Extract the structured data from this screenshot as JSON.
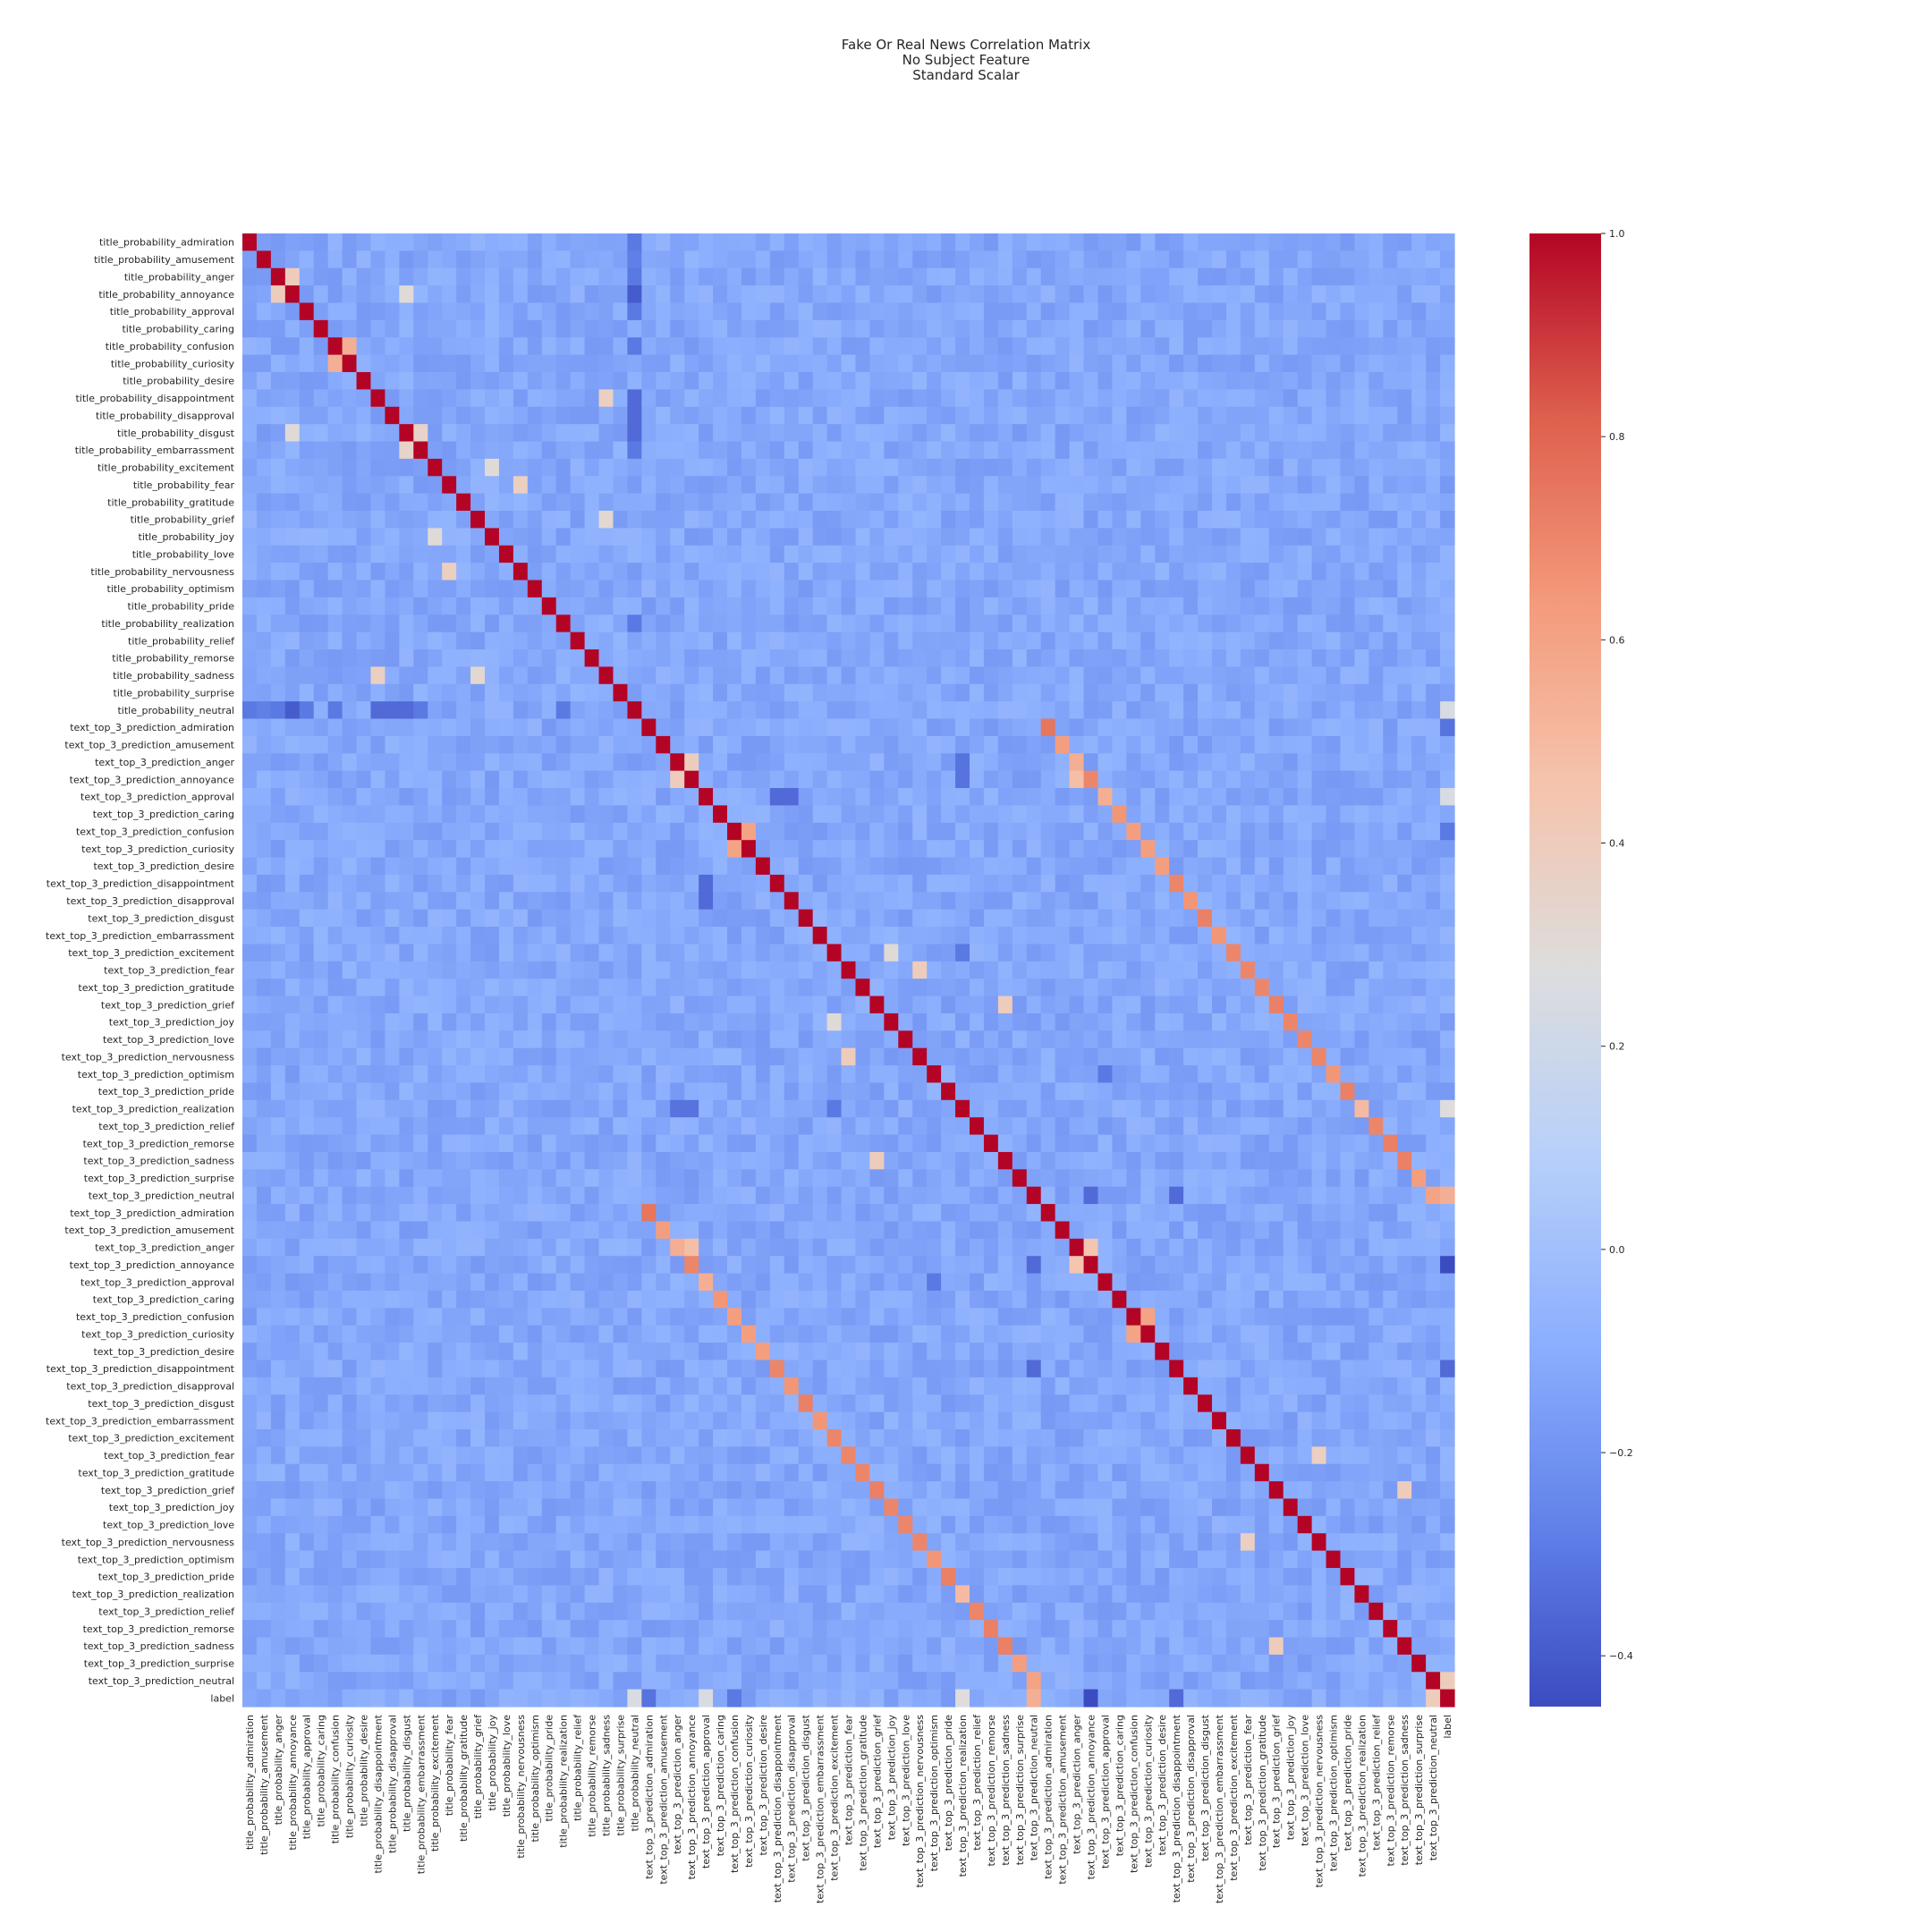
{
  "chart_data": {
    "type": "heatmap",
    "title_lines": [
      "Fake Or Real News Correlation Matrix",
      "No Subject Feature",
      "Standard Scalar"
    ],
    "labels": [
      "title_probability_admiration",
      "title_probability_amusement",
      "title_probability_anger",
      "title_probability_annoyance",
      "title_probability_approval",
      "title_probability_caring",
      "title_probability_confusion",
      "title_probability_curiosity",
      "title_probability_desire",
      "title_probability_disappointment",
      "title_probability_disapproval",
      "title_probability_disgust",
      "title_probability_embarrassment",
      "title_probability_excitement",
      "title_probability_fear",
      "title_probability_gratitude",
      "title_probability_grief",
      "title_probability_joy",
      "title_probability_love",
      "title_probability_nervousness",
      "title_probability_optimism",
      "title_probability_pride",
      "title_probability_realization",
      "title_probability_relief",
      "title_probability_remorse",
      "title_probability_sadness",
      "title_probability_surprise",
      "title_probability_neutral",
      "text_top_3_prediction_admiration",
      "text_top_3_prediction_amusement",
      "text_top_3_prediction_anger",
      "text_top_3_prediction_annoyance",
      "text_top_3_prediction_approval",
      "text_top_3_prediction_caring",
      "text_top_3_prediction_confusion",
      "text_top_3_prediction_curiosity",
      "text_top_3_prediction_desire",
      "text_top_3_prediction_disappointment",
      "text_top_3_prediction_disapproval",
      "text_top_3_prediction_disgust",
      "text_top_3_prediction_embarrassment",
      "text_top_3_prediction_excitement",
      "text_top_3_prediction_fear",
      "text_top_3_prediction_gratitude",
      "text_top_3_prediction_grief",
      "text_top_3_prediction_joy",
      "text_top_3_prediction_love",
      "text_top_3_prediction_nervousness",
      "text_top_3_prediction_optimism",
      "text_top_3_prediction_pride",
      "text_top_3_prediction_realization",
      "text_top_3_prediction_relief",
      "text_top_3_prediction_remorse",
      "text_top_3_prediction_sadness",
      "text_top_3_prediction_surprise",
      "text_top_3_prediction_neutral",
      "text_top_3_prediction_admiration",
      "text_top_3_prediction_amusement",
      "text_top_3_prediction_anger",
      "text_top_3_prediction_annoyance",
      "text_top_3_prediction_approval",
      "text_top_3_prediction_caring",
      "text_top_3_prediction_confusion",
      "text_top_3_prediction_curiosity",
      "text_top_3_prediction_desire",
      "text_top_3_prediction_disappointment",
      "text_top_3_prediction_disapproval",
      "text_top_3_prediction_disgust",
      "text_top_3_prediction_embarrassment",
      "text_top_3_prediction_excitement",
      "text_top_3_prediction_fear",
      "text_top_3_prediction_gratitude",
      "text_top_3_prediction_grief",
      "text_top_3_prediction_joy",
      "text_top_3_prediction_love",
      "text_top_3_prediction_nervousness",
      "text_top_3_prediction_optimism",
      "text_top_3_prediction_pride",
      "text_top_3_prediction_realization",
      "text_top_3_prediction_relief",
      "text_top_3_prediction_remorse",
      "text_top_3_prediction_sadness",
      "text_top_3_prediction_surprise",
      "text_top_3_prediction_neutral",
      "label"
    ],
    "vmin": -0.45,
    "vmax": 1.0,
    "colormap": "coolwarm",
    "colorbar_ticks": [
      1.0,
      0.8,
      0.6,
      0.4,
      0.2,
      0.0,
      -0.2,
      -0.4
    ],
    "colorbar_tick_labels": [
      "1.0",
      "0.8",
      "0.6",
      "0.4",
      "0.2",
      "0.0",
      "−0.2",
      "−0.4"
    ],
    "baseline_correlation": -0.12,
    "diagonal": 1.0,
    "notable_correlations": [
      {
        "row": 6,
        "col": 7,
        "value": 0.55
      },
      {
        "row": 2,
        "col": 3,
        "value": 0.4
      },
      {
        "row": 11,
        "col": 12,
        "value": 0.35
      },
      {
        "row": 3,
        "col": 11,
        "value": 0.3
      },
      {
        "row": 9,
        "col": 25,
        "value": 0.38
      },
      {
        "row": 13,
        "col": 17,
        "value": 0.3
      },
      {
        "row": 14,
        "col": 19,
        "value": 0.38
      },
      {
        "row": 16,
        "col": 25,
        "value": 0.32
      },
      {
        "row": 0,
        "col": 27,
        "value": -0.3
      },
      {
        "row": 1,
        "col": 27,
        "value": -0.28
      },
      {
        "row": 2,
        "col": 27,
        "value": -0.3
      },
      {
        "row": 3,
        "col": 27,
        "value": -0.4
      },
      {
        "row": 4,
        "col": 27,
        "value": -0.3
      },
      {
        "row": 6,
        "col": 27,
        "value": -0.3
      },
      {
        "row": 9,
        "col": 27,
        "value": -0.35
      },
      {
        "row": 10,
        "col": 27,
        "value": -0.35
      },
      {
        "row": 11,
        "col": 27,
        "value": -0.35
      },
      {
        "row": 12,
        "col": 27,
        "value": -0.3
      },
      {
        "row": 22,
        "col": 27,
        "value": -0.3
      },
      {
        "row": 27,
        "col": 84,
        "value": 0.25
      },
      {
        "row": 28,
        "col": 56,
        "value": 0.75
      },
      {
        "row": 34,
        "col": 35,
        "value": 0.6
      },
      {
        "row": 30,
        "col": 31,
        "value": 0.4
      },
      {
        "row": 29,
        "col": 57,
        "value": 0.62
      },
      {
        "row": 30,
        "col": 58,
        "value": 0.55
      },
      {
        "row": 31,
        "col": 59,
        "value": 0.7
      },
      {
        "row": 32,
        "col": 60,
        "value": 0.55
      },
      {
        "row": 33,
        "col": 61,
        "value": 0.65
      },
      {
        "row": 34,
        "col": 62,
        "value": 0.62
      },
      {
        "row": 35,
        "col": 63,
        "value": 0.62
      },
      {
        "row": 36,
        "col": 64,
        "value": 0.62
      },
      {
        "row": 37,
        "col": 65,
        "value": 0.7
      },
      {
        "row": 38,
        "col": 66,
        "value": 0.65
      },
      {
        "row": 39,
        "col": 67,
        "value": 0.72
      },
      {
        "row": 40,
        "col": 68,
        "value": 0.65
      },
      {
        "row": 41,
        "col": 69,
        "value": 0.7
      },
      {
        "row": 42,
        "col": 70,
        "value": 0.7
      },
      {
        "row": 43,
        "col": 71,
        "value": 0.7
      },
      {
        "row": 44,
        "col": 72,
        "value": 0.72
      },
      {
        "row": 45,
        "col": 73,
        "value": 0.7
      },
      {
        "row": 46,
        "col": 74,
        "value": 0.7
      },
      {
        "row": 47,
        "col": 75,
        "value": 0.7
      },
      {
        "row": 48,
        "col": 76,
        "value": 0.65
      },
      {
        "row": 49,
        "col": 77,
        "value": 0.72
      },
      {
        "row": 50,
        "col": 78,
        "value": 0.5
      },
      {
        "row": 51,
        "col": 79,
        "value": 0.7
      },
      {
        "row": 52,
        "col": 80,
        "value": 0.72
      },
      {
        "row": 53,
        "col": 81,
        "value": 0.72
      },
      {
        "row": 54,
        "col": 82,
        "value": 0.62
      },
      {
        "row": 55,
        "col": 83,
        "value": 0.6
      },
      {
        "row": 30,
        "col": 58,
        "value": 0.55
      },
      {
        "row": 31,
        "col": 58,
        "value": 0.48
      },
      {
        "row": 62,
        "col": 63,
        "value": 0.6
      },
      {
        "row": 58,
        "col": 59,
        "value": 0.45
      },
      {
        "row": 42,
        "col": 47,
        "value": 0.4
      },
      {
        "row": 44,
        "col": 53,
        "value": 0.4
      },
      {
        "row": 45,
        "col": 41,
        "value": 0.3
      },
      {
        "row": 70,
        "col": 75,
        "value": 0.38
      },
      {
        "row": 72,
        "col": 81,
        "value": 0.4
      },
      {
        "row": 55,
        "col": 84,
        "value": 0.55
      },
      {
        "row": 83,
        "col": 84,
        "value": 0.4
      },
      {
        "row": 59,
        "col": 84,
        "value": -0.45
      },
      {
        "row": 65,
        "col": 84,
        "value": -0.35
      },
      {
        "row": 28,
        "col": 84,
        "value": -0.32
      },
      {
        "row": 34,
        "col": 84,
        "value": -0.3
      },
      {
        "row": 32,
        "col": 84,
        "value": 0.25
      },
      {
        "row": 50,
        "col": 84,
        "value": 0.28
      },
      {
        "row": 55,
        "col": 59,
        "value": -0.35
      },
      {
        "row": 55,
        "col": 65,
        "value": -0.35
      },
      {
        "row": 32,
        "col": 37,
        "value": -0.35
      },
      {
        "row": 32,
        "col": 38,
        "value": -0.35
      },
      {
        "row": 50,
        "col": 30,
        "value": -0.32
      },
      {
        "row": 50,
        "col": 31,
        "value": -0.32
      },
      {
        "row": 41,
        "col": 50,
        "value": -0.3
      },
      {
        "row": 48,
        "col": 60,
        "value": -0.3
      }
    ]
  }
}
